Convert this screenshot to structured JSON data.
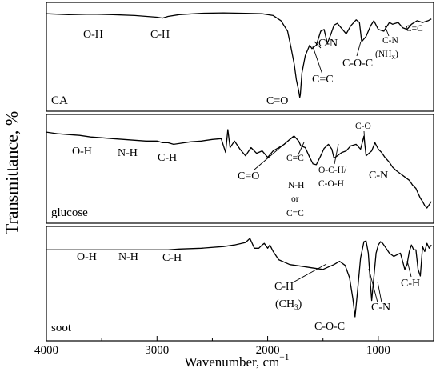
{
  "chart_data": {
    "type": "line",
    "title": "",
    "xlabel": "Wavenumber, cm",
    "xlabel_superscript": "−1",
    "ylabel": "Transmittance, %",
    "xlim": [
      4000,
      500
    ],
    "x_inverted": true,
    "x_ticks": [
      4000,
      3000,
      2000,
      1000
    ],
    "grid": false,
    "panels": [
      {
        "name": "CA",
        "annotations": [
          {
            "text": "O-H",
            "x": 3550
          },
          {
            "text": "C-H",
            "x": 2920
          },
          {
            "text": "C=O",
            "x": 1710
          },
          {
            "text": "C=C",
            "x": 1600
          },
          {
            "text": "C-N",
            "x": 1500
          },
          {
            "text": "C-O-C",
            "x": 1220
          },
          {
            "text": "C-N",
            "x": 1080
          },
          {
            "text": "NH",
            "sub": "x",
            "x": 1040
          },
          {
            "text": "C=C",
            "x": 820
          }
        ],
        "series": [
          {
            "x": [
              4000,
              3800,
              3600,
              3400,
              3200,
              3000,
              2950,
              2900,
              2800,
              2600,
              2400,
              2200,
              2050,
              1950,
              1880,
              1820,
              1790,
              1760,
              1740,
              1720,
              1710,
              1705,
              1690,
              1660,
              1620,
              1600,
              1560,
              1520,
              1490,
              1460,
              1430,
              1400,
              1370,
              1330,
              1290,
              1250,
              1200,
              1170,
              1150,
              1110,
              1070,
              1040,
              1000,
              950,
              900,
              870,
              820,
              780,
              740,
              700,
              650,
              600,
              550,
              520
            ],
            "y": [
              0.98,
              0.97,
              0.975,
              0.97,
              0.96,
              0.94,
              0.93,
              0.95,
              0.97,
              0.985,
              0.99,
              0.985,
              0.98,
              0.96,
              0.9,
              0.78,
              0.6,
              0.4,
              0.22,
              0.1,
              0.02,
              0.05,
              0.3,
              0.5,
              0.62,
              0.58,
              0.62,
              0.78,
              0.8,
              0.64,
              0.74,
              0.85,
              0.87,
              0.81,
              0.75,
              0.84,
              0.91,
              0.88,
              0.66,
              0.72,
              0.84,
              0.9,
              0.8,
              0.78,
              0.88,
              0.86,
              0.88,
              0.82,
              0.8,
              0.86,
              0.9,
              0.88,
              0.9,
              0.92
            ]
          }
        ]
      },
      {
        "name": "glucose",
        "annotations": [
          {
            "text": "O-H",
            "x": 3600
          },
          {
            "text": "N-H",
            "x": 3250
          },
          {
            "text": "C-H",
            "x": 2850
          },
          {
            "text": "C=O",
            "x": 1880
          },
          {
            "text": "C=C",
            "x": 1670
          },
          {
            "text": "N-H",
            "x": 1660
          },
          {
            "text": "or",
            "x": 1660
          },
          {
            "text": "C=C",
            "x": 1660
          },
          {
            "text": "O-C-H/",
            "x": 1320
          },
          {
            "text": "C-O-H",
            "x": 1320
          },
          {
            "text": "C-O",
            "x": 1130
          },
          {
            "text": "C-N",
            "x": 1020
          }
        ],
        "series": [
          {
            "x": [
              4000,
              3900,
              3800,
              3700,
              3600,
              3500,
              3400,
              3300,
              3200,
              3100,
              3000,
              2950,
              2900,
              2850,
              2800,
              2700,
              2600,
              2500,
              2420,
              2380,
              2360,
              2340,
              2300,
              2250,
              2200,
              2150,
              2100,
              2050,
              2000,
              1950,
              1900,
              1850,
              1800,
              1760,
              1720,
              1700,
              1660,
              1620,
              1590,
              1560,
              1520,
              1490,
              1450,
              1420,
              1400,
              1370,
              1330,
              1290,
              1250,
              1200,
              1160,
              1130,
              1110,
              1060,
              1030,
              1000,
              970,
              940,
              900,
              870,
              840,
              800,
              760,
              720,
              690,
              660,
              640,
              620,
              600,
              580,
              560,
              540,
              520
            ],
            "y": [
              0.95,
              0.93,
              0.92,
              0.91,
              0.89,
              0.88,
              0.87,
              0.86,
              0.85,
              0.84,
              0.84,
              0.82,
              0.82,
              0.8,
              0.81,
              0.83,
              0.84,
              0.86,
              0.87,
              0.7,
              0.98,
              0.76,
              0.84,
              0.74,
              0.66,
              0.76,
              0.69,
              0.72,
              0.64,
              0.72,
              0.76,
              0.8,
              0.86,
              0.9,
              0.84,
              0.78,
              0.76,
              0.64,
              0.56,
              0.55,
              0.66,
              0.75,
              0.8,
              0.74,
              0.63,
              0.66,
              0.7,
              0.72,
              0.78,
              0.8,
              0.74,
              0.9,
              0.66,
              0.72,
              0.82,
              0.74,
              0.7,
              0.64,
              0.58,
              0.52,
              0.48,
              0.44,
              0.4,
              0.36,
              0.3,
              0.26,
              0.2,
              0.14,
              0.1,
              0.05,
              0.02,
              0.06,
              0.1
            ]
          }
        ]
      },
      {
        "name": "soot",
        "annotations": [
          {
            "text": "O-H",
            "x": 3550
          },
          {
            "text": "N-H",
            "x": 3250
          },
          {
            "text": "C-H",
            "x": 2900
          },
          {
            "text": "C-H",
            "x": 1850
          },
          {
            "text": "CH",
            "sub": "3",
            "x": 1850
          },
          {
            "text": "C-O-C",
            "x": 1200
          },
          {
            "text": "C-N",
            "x": 1070
          },
          {
            "text": "C-H",
            "x": 790
          }
        ],
        "series": [
          {
            "x": [
              4000,
              3800,
              3600,
              3400,
              3200,
              3000,
              2900,
              2800,
              2600,
              2400,
              2300,
              2200,
              2160,
              2120,
              2080,
              2050,
              2030,
              2000,
              1980,
              1950,
              1900,
              1800,
              1700,
              1600,
              1500,
              1450,
              1400,
              1350,
              1300,
              1260,
              1230,
              1210,
              1190,
              1160,
              1130,
              1110,
              1090,
              1070,
              1060,
              1040,
              1020,
              1000,
              980,
              960,
              940,
              900,
              860,
              830,
              800,
              780,
              760,
              740,
              720,
              700,
              680,
              660,
              640,
              620,
              600,
              580,
              560,
              540,
              520
            ],
            "y": [
              0.84,
              0.84,
              0.84,
              0.84,
              0.84,
              0.84,
              0.84,
              0.85,
              0.86,
              0.88,
              0.9,
              0.93,
              0.98,
              0.86,
              0.86,
              0.9,
              0.92,
              0.86,
              0.9,
              0.82,
              0.72,
              0.66,
              0.64,
              0.62,
              0.6,
              0.63,
              0.66,
              0.7,
              0.65,
              0.5,
              0.24,
              0.02,
              0.3,
              0.74,
              0.94,
              0.95,
              0.8,
              0.4,
              0.22,
              0.5,
              0.8,
              0.9,
              0.94,
              0.92,
              0.88,
              0.8,
              0.76,
              0.78,
              0.8,
              0.7,
              0.6,
              0.66,
              0.82,
              0.9,
              0.84,
              0.84,
              0.6,
              0.52,
              0.88,
              0.82,
              0.92,
              0.86,
              0.9
            ]
          }
        ]
      }
    ]
  }
}
